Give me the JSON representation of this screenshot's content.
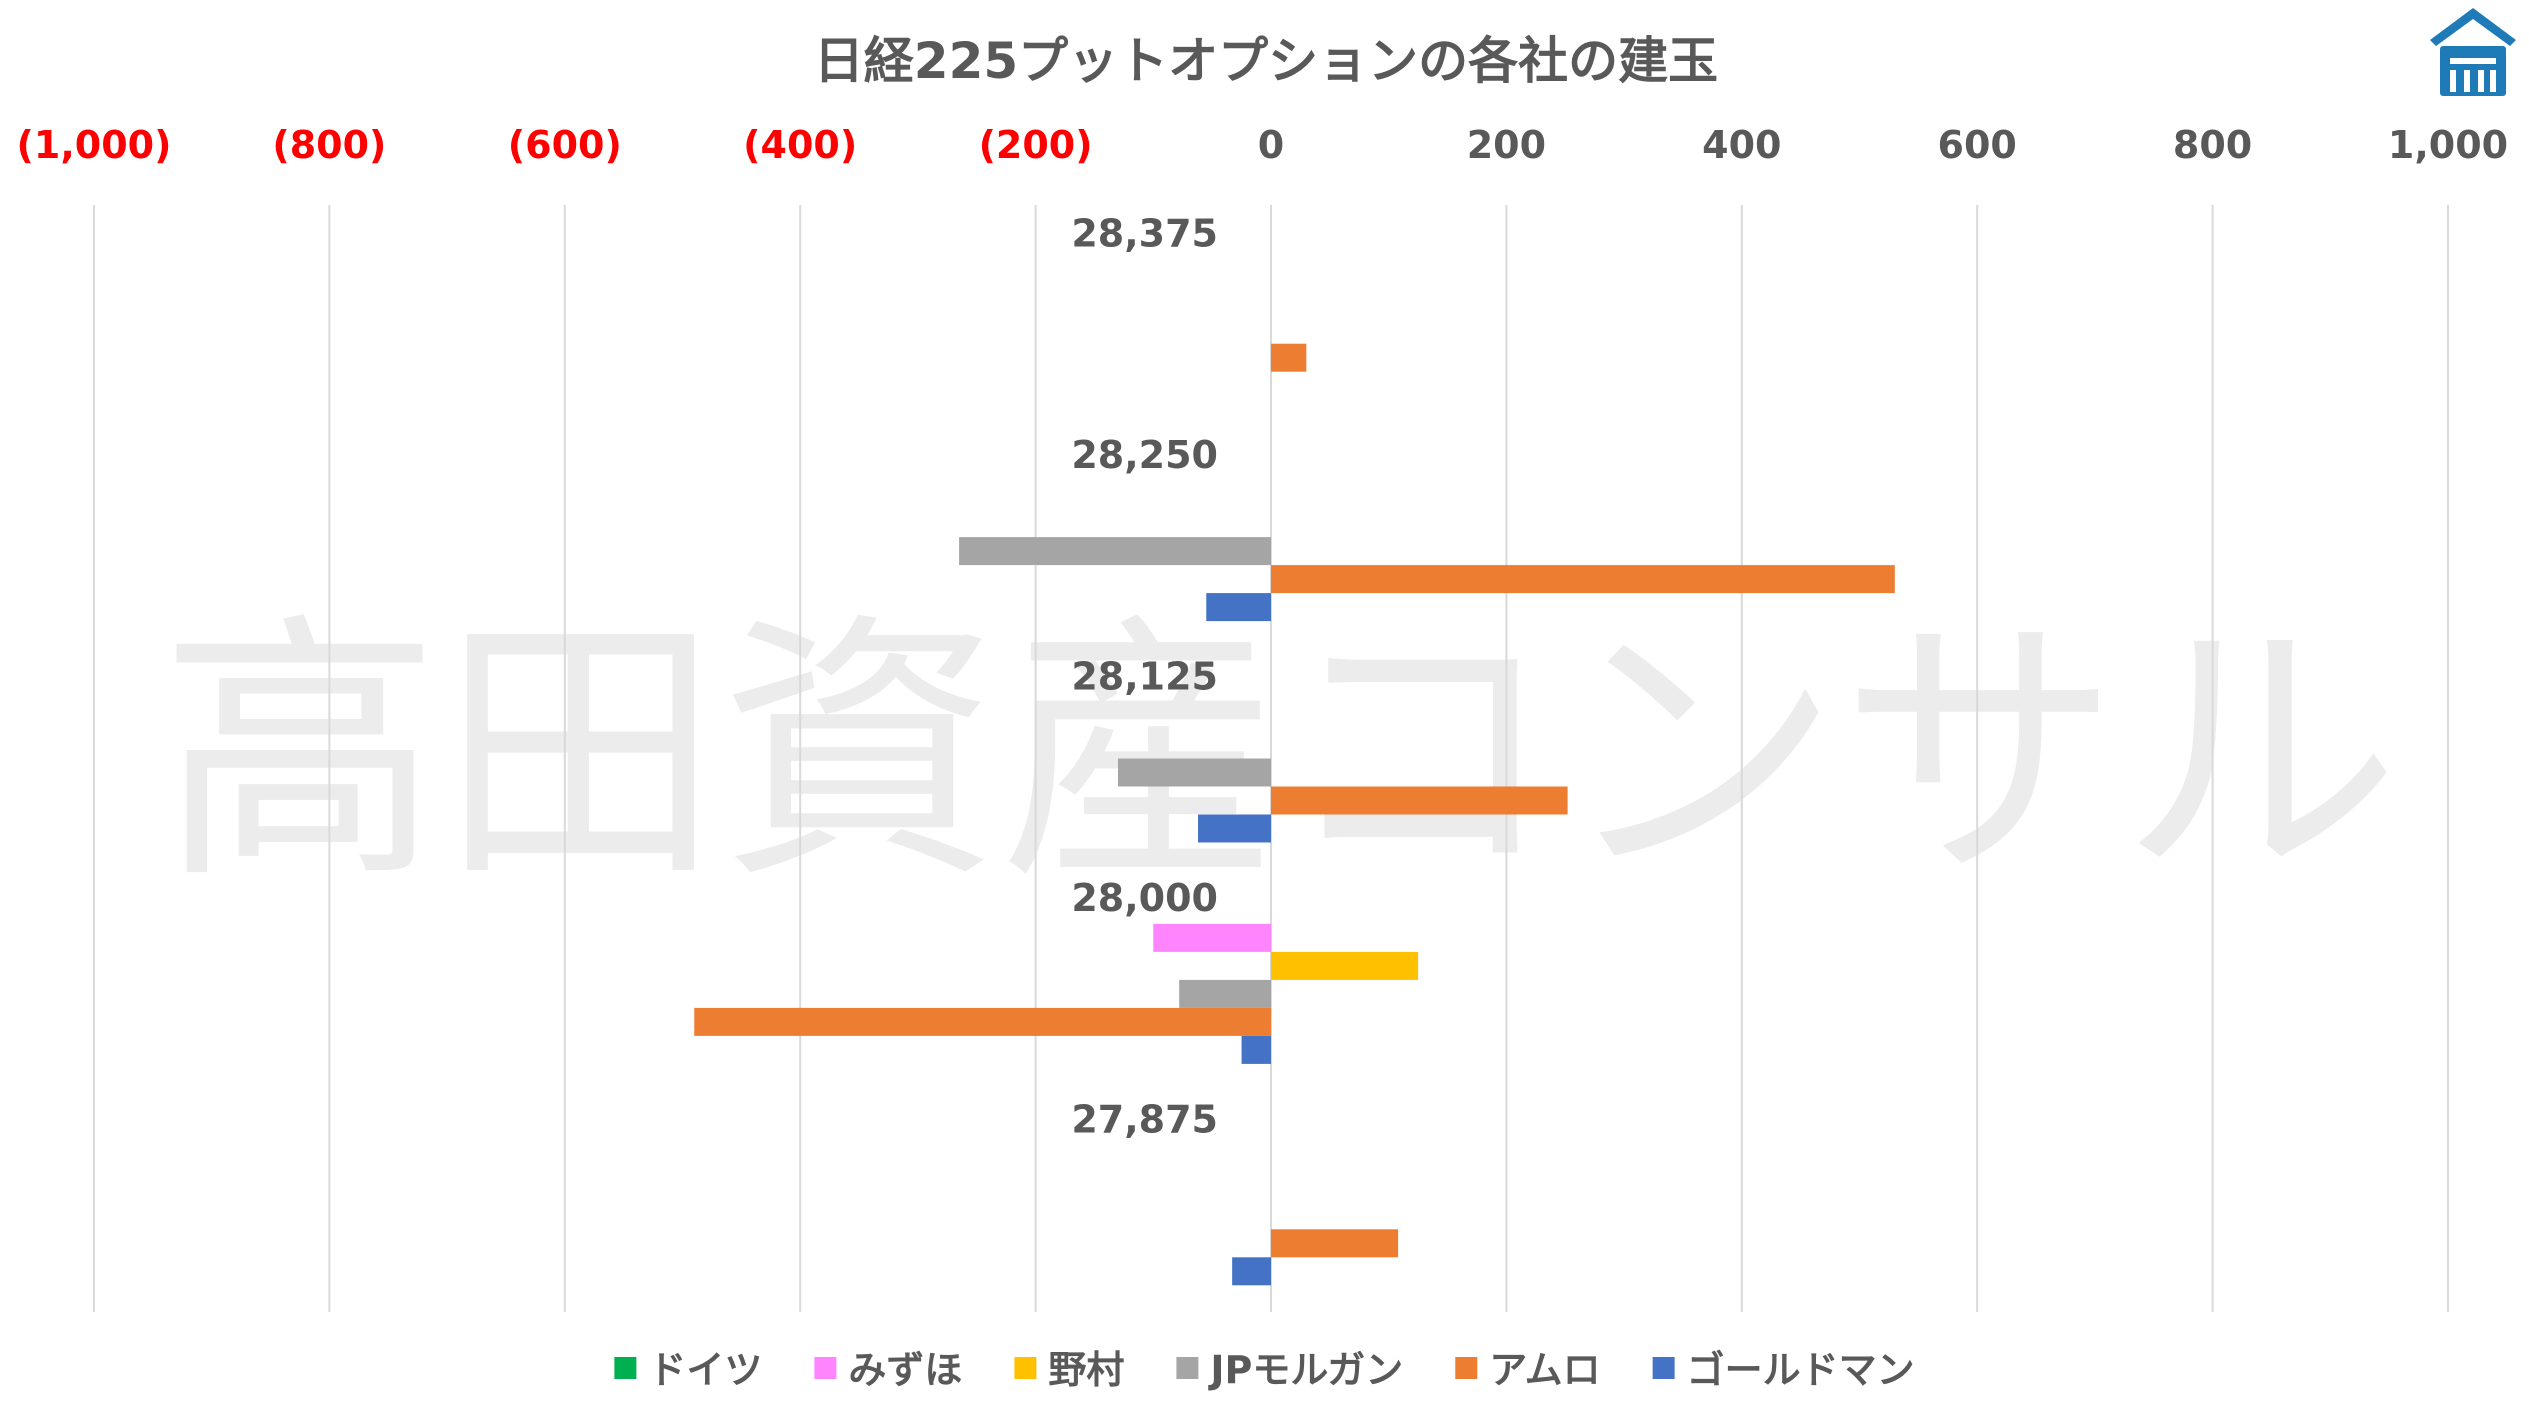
{
  "chart_data": {
    "type": "bar",
    "orientation": "horizontal",
    "title": "日経225プットオプションの各社の建玉",
    "xlim": [
      -1000,
      1000
    ],
    "x_ticks": [
      {
        "value": -1000,
        "label": "(1,000)",
        "color": "#ff0000"
      },
      {
        "value": -800,
        "label": "(800)",
        "color": "#ff0000"
      },
      {
        "value": -600,
        "label": "(600)",
        "color": "#ff0000"
      },
      {
        "value": -400,
        "label": "(400)",
        "color": "#ff0000"
      },
      {
        "value": -200,
        "label": "(200)",
        "color": "#ff0000"
      },
      {
        "value": 0,
        "label": "0",
        "color": "#595959"
      },
      {
        "value": 200,
        "label": "200",
        "color": "#595959"
      },
      {
        "value": 400,
        "label": "400",
        "color": "#595959"
      },
      {
        "value": 600,
        "label": "600",
        "color": "#595959"
      },
      {
        "value": 800,
        "label": "800",
        "color": "#595959"
      },
      {
        "value": 1000,
        "label": "1,000",
        "color": "#595959"
      }
    ],
    "grid": true,
    "legend_position": "bottom",
    "categories": [
      "28,375",
      "28,250",
      "28,125",
      "28,000",
      "27,875"
    ],
    "series": [
      {
        "name": "ドイツ",
        "color": "#00b050",
        "values": [
          0,
          0,
          0,
          0,
          0
        ]
      },
      {
        "name": "みずほ",
        "color": "#ff85ff",
        "values": [
          0,
          0,
          0,
          -100,
          0
        ]
      },
      {
        "name": "野村",
        "color": "#ffc000",
        "values": [
          0,
          0,
          0,
          125,
          0
        ]
      },
      {
        "name": "JPモルガン",
        "color": "#a5a5a5",
        "values": [
          0,
          -265,
          -130,
          -78,
          0
        ]
      },
      {
        "name": "アムロ",
        "color": "#ed7d31",
        "values": [
          30,
          530,
          252,
          -490,
          108
        ]
      },
      {
        "name": "ゴールドマン",
        "color": "#4472c4",
        "values": [
          0,
          -55,
          -62,
          -25,
          -33
        ]
      }
    ]
  },
  "watermark": "高田資産コンサル",
  "logo": {
    "name": "house-logo-icon",
    "color": "#1f7ab8"
  }
}
